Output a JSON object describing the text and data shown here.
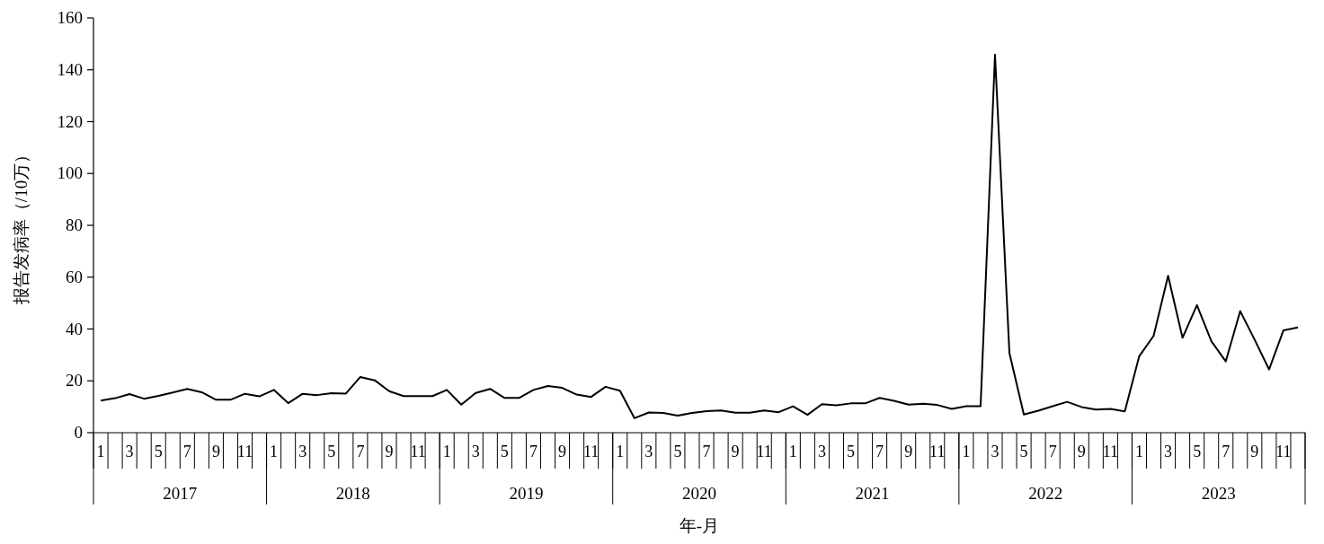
{
  "chart_data": {
    "type": "line",
    "ylabel": "报告发病率（/10万）",
    "xlabel": "年-月",
    "color": "#000000",
    "ylim": [
      0,
      160
    ],
    "yticks": [
      0,
      20,
      40,
      60,
      80,
      100,
      120,
      140,
      160
    ],
    "categories": [
      "1",
      null,
      "3",
      null,
      "5",
      null,
      "7",
      null,
      "9",
      null,
      "11",
      null,
      "1",
      null,
      "3",
      null,
      "5",
      null,
      "7",
      null,
      "9",
      null,
      "11",
      null,
      "1",
      null,
      "3",
      null,
      "5",
      null,
      "7",
      null,
      "9",
      null,
      "11",
      null,
      "1",
      null,
      "3",
      null,
      "5",
      null,
      "7",
      null,
      "9",
      null,
      "11",
      null,
      "1",
      null,
      "3",
      null,
      "5",
      null,
      "7",
      null,
      "9",
      null,
      "11",
      null,
      "1",
      null,
      "3",
      null,
      "5",
      null,
      "7",
      null,
      "9",
      null,
      "11",
      null,
      "1",
      null,
      "3",
      null,
      "5",
      null,
      "7",
      null,
      "9",
      null,
      "11",
      null
    ],
    "values": [
      12.4,
      13.3,
      14.9,
      13.1,
      14.2,
      15.5,
      16.9,
      15.6,
      12.7,
      12.7,
      15.0,
      14.0,
      16.5,
      11.4,
      15.0,
      14.5,
      15.2,
      15.1,
      21.5,
      20.2,
      16.0,
      14.1,
      14.1,
      14.1,
      16.5,
      10.8,
      15.3,
      16.9,
      13.4,
      13.4,
      16.5,
      18.0,
      17.3,
      14.7,
      13.8,
      17.7,
      16.2,
      5.6,
      7.8,
      7.6,
      6.6,
      7.6,
      8.3,
      8.6,
      7.7,
      7.7,
      8.6,
      7.9,
      10.2,
      6.9,
      11.0,
      10.6,
      11.3,
      11.3,
      13.4,
      12.3,
      10.8,
      11.2,
      10.7,
      9.2,
      10.2,
      10.2,
      145.8,
      30.7,
      7.0,
      8.5,
      10.2,
      11.9,
      9.9,
      8.9,
      9.2,
      8.2,
      29.5,
      37.4,
      60.5,
      36.6,
      49.2,
      35.3,
      27.5,
      46.9,
      35.9,
      24.4,
      39.5,
      40.6
    ],
    "annotations": [
      "2017",
      "2018",
      "2019",
      "2020",
      "2021",
      "2022",
      "2023"
    ]
  }
}
